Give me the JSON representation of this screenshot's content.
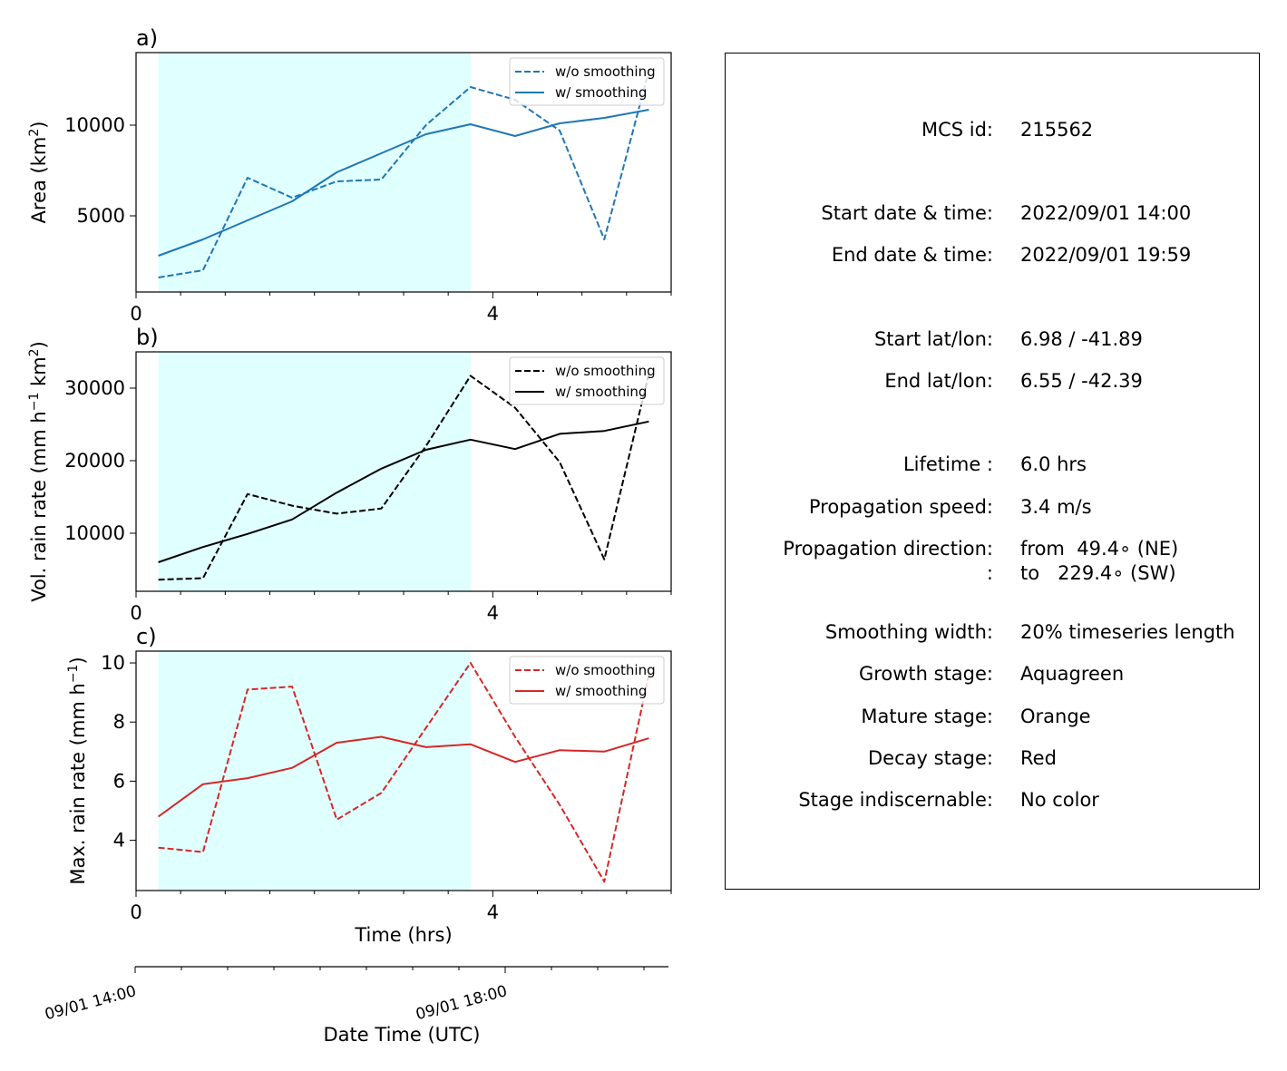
{
  "panels": [
    {
      "key": "area",
      "panel_label": "a)",
      "ylabel": "Area  (km",
      "ylabel_sup": "2",
      "ylabel_tail": ")",
      "color": "#1f77b4"
    },
    {
      "key": "vol",
      "panel_label": "b)",
      "ylabel": "Vol. rain rate (mm h",
      "ylabel_sup": "−1",
      "ylabel_mid": " km",
      "ylabel_sup2": "2",
      "ylabel_tail": ")",
      "color": "#000000"
    },
    {
      "key": "max",
      "panel_label": "c)",
      "ylabel": "Max. rain rate  (mm h",
      "ylabel_sup": "−1",
      "ylabel_tail": ")",
      "color": "#d62728"
    }
  ],
  "legend": {
    "dashed": "w/o smoothing",
    "solid": "w/ smoothing"
  },
  "xaxis": {
    "label": "Time (hrs)",
    "ticks": [
      0,
      4
    ]
  },
  "datetime_axis": {
    "label": "Date Time (UTC)",
    "ticks": [
      "09/01 14:00",
      "09/01 18:00"
    ]
  },
  "growth_shade_color": "#e0ffff",
  "chart_data": [
    {
      "type": "line",
      "title": "",
      "xlabel": "",
      "ylabel": "Area  (km2)",
      "xlim": [
        0,
        6
      ],
      "ylim": [
        800,
        14000
      ],
      "yticks": [
        5000,
        10000
      ],
      "shaded_span": [
        0.25,
        3.75
      ],
      "x": [
        0.25,
        0.75,
        1.25,
        1.75,
        2.25,
        2.75,
        3.25,
        3.75,
        4.25,
        4.75,
        5.25,
        5.75
      ],
      "series": [
        {
          "name": "w/o smoothing",
          "style": "dashed",
          "values": [
            1600,
            2000,
            7100,
            6000,
            6900,
            7000,
            10000,
            12100,
            11400,
            9700,
            3700,
            13000
          ]
        },
        {
          "name": "w/ smoothing",
          "style": "solid",
          "values": [
            2800,
            3700,
            4750,
            5800,
            7400,
            8450,
            9500,
            10050,
            9400,
            10100,
            10400,
            10850
          ]
        }
      ]
    },
    {
      "type": "line",
      "title": "",
      "xlabel": "",
      "ylabel": "Vol. rain rate (mm h−1 km2)",
      "xlim": [
        0,
        6
      ],
      "ylim": [
        2000,
        35000
      ],
      "yticks": [
        10000,
        20000,
        30000
      ],
      "shaded_span": [
        0.25,
        3.75
      ],
      "x": [
        0.25,
        0.75,
        1.25,
        1.75,
        2.25,
        2.75,
        3.25,
        3.75,
        4.25,
        4.75,
        5.25,
        5.75
      ],
      "series": [
        {
          "name": "w/o smoothing",
          "style": "dashed",
          "values": [
            3600,
            3800,
            15400,
            13800,
            12700,
            13400,
            22000,
            31700,
            27300,
            19800,
            6400,
            32000
          ]
        },
        {
          "name": "w/ smoothing",
          "style": "solid",
          "values": [
            6000,
            8100,
            9900,
            11900,
            15600,
            18900,
            21500,
            22900,
            21600,
            23700,
            24100,
            25400
          ]
        }
      ]
    },
    {
      "type": "line",
      "title": "",
      "xlabel": "Time (hrs)",
      "ylabel": "Max. rain rate  (mm h−1)",
      "xlim": [
        0,
        6
      ],
      "ylim": [
        2.3,
        10.4
      ],
      "yticks": [
        4,
        6,
        8,
        10
      ],
      "shaded_span": [
        0.25,
        3.75
      ],
      "x": [
        0.25,
        0.75,
        1.25,
        1.75,
        2.25,
        2.75,
        3.25,
        3.75,
        4.25,
        4.75,
        5.25,
        5.75
      ],
      "series": [
        {
          "name": "w/o smoothing",
          "style": "dashed",
          "values": [
            3.75,
            3.6,
            9.1,
            9.2,
            4.7,
            5.6,
            7.8,
            10.0,
            7.5,
            5.2,
            2.6,
            9.6
          ]
        },
        {
          "name": "w/ smoothing",
          "style": "solid",
          "values": [
            4.8,
            5.9,
            6.1,
            6.45,
            7.3,
            7.5,
            7.15,
            7.25,
            6.65,
            7.05,
            7.0,
            7.45
          ]
        }
      ]
    }
  ],
  "info": [
    {
      "label": "MCS id:",
      "value": "215562"
    },
    {
      "label": "Start date & time:",
      "value": "2022/09/01 14:00"
    },
    {
      "label": "End date & time:",
      "value": "2022/09/01 19:59"
    },
    {
      "label": "Start lat/lon:",
      "value": "6.98 / -41.89"
    },
    {
      "label": "End lat/lon:",
      "value": "6.55 / -42.39"
    },
    {
      "label": "Lifetime :",
      "value": "6.0 hrs"
    },
    {
      "label": "Propagation speed:",
      "value": "3.4 m/s"
    },
    {
      "label": "Propagation direction:",
      "value": "from  49.4∘ (NE)"
    },
    {
      "label": ":",
      "value": "to   229.4∘ (SW)"
    },
    {
      "label": "Smoothing width:",
      "value": "20% timeseries length"
    },
    {
      "label": "Growth stage:",
      "value": "Aquagreen"
    },
    {
      "label": "Mature stage:",
      "value": "Orange"
    },
    {
      "label": "Decay stage:",
      "value": "Red"
    },
    {
      "label": "Stage indiscernable:",
      "value": "No color"
    }
  ]
}
